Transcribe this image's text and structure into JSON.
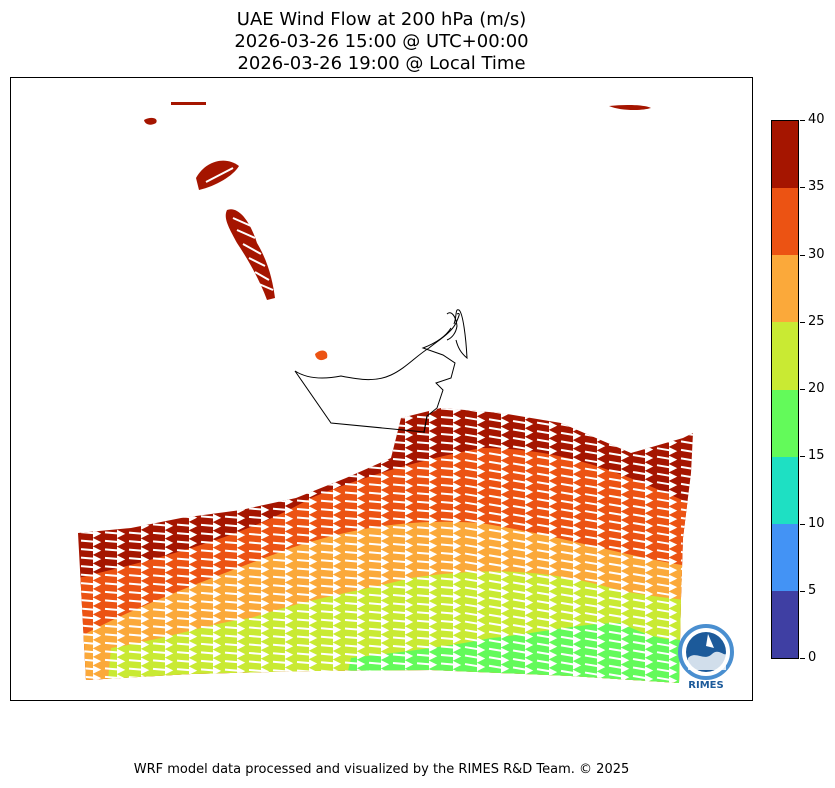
{
  "title": {
    "line1": "UAE Wind Flow at 200 hPa (m/s)",
    "line2": "2026-03-26 15:00 @ UTC+00:00",
    "line3": "2026-03-26 19:00 @ Local Time"
  },
  "footer": "WRF model data processed and visualized by the RIMES R&D Team. © 2025",
  "logo": {
    "text": "RIMES"
  },
  "colorbar": {
    "ticks": [
      "0",
      "5",
      "10",
      "15",
      "20",
      "25",
      "30",
      "35",
      "40"
    ],
    "colors": [
      "#3f3fa3",
      "#4393f5",
      "#1ee0c3",
      "#63fa5a",
      "#c9ea33",
      "#fba93a",
      "#ec5313",
      "#a51500"
    ]
  }
}
